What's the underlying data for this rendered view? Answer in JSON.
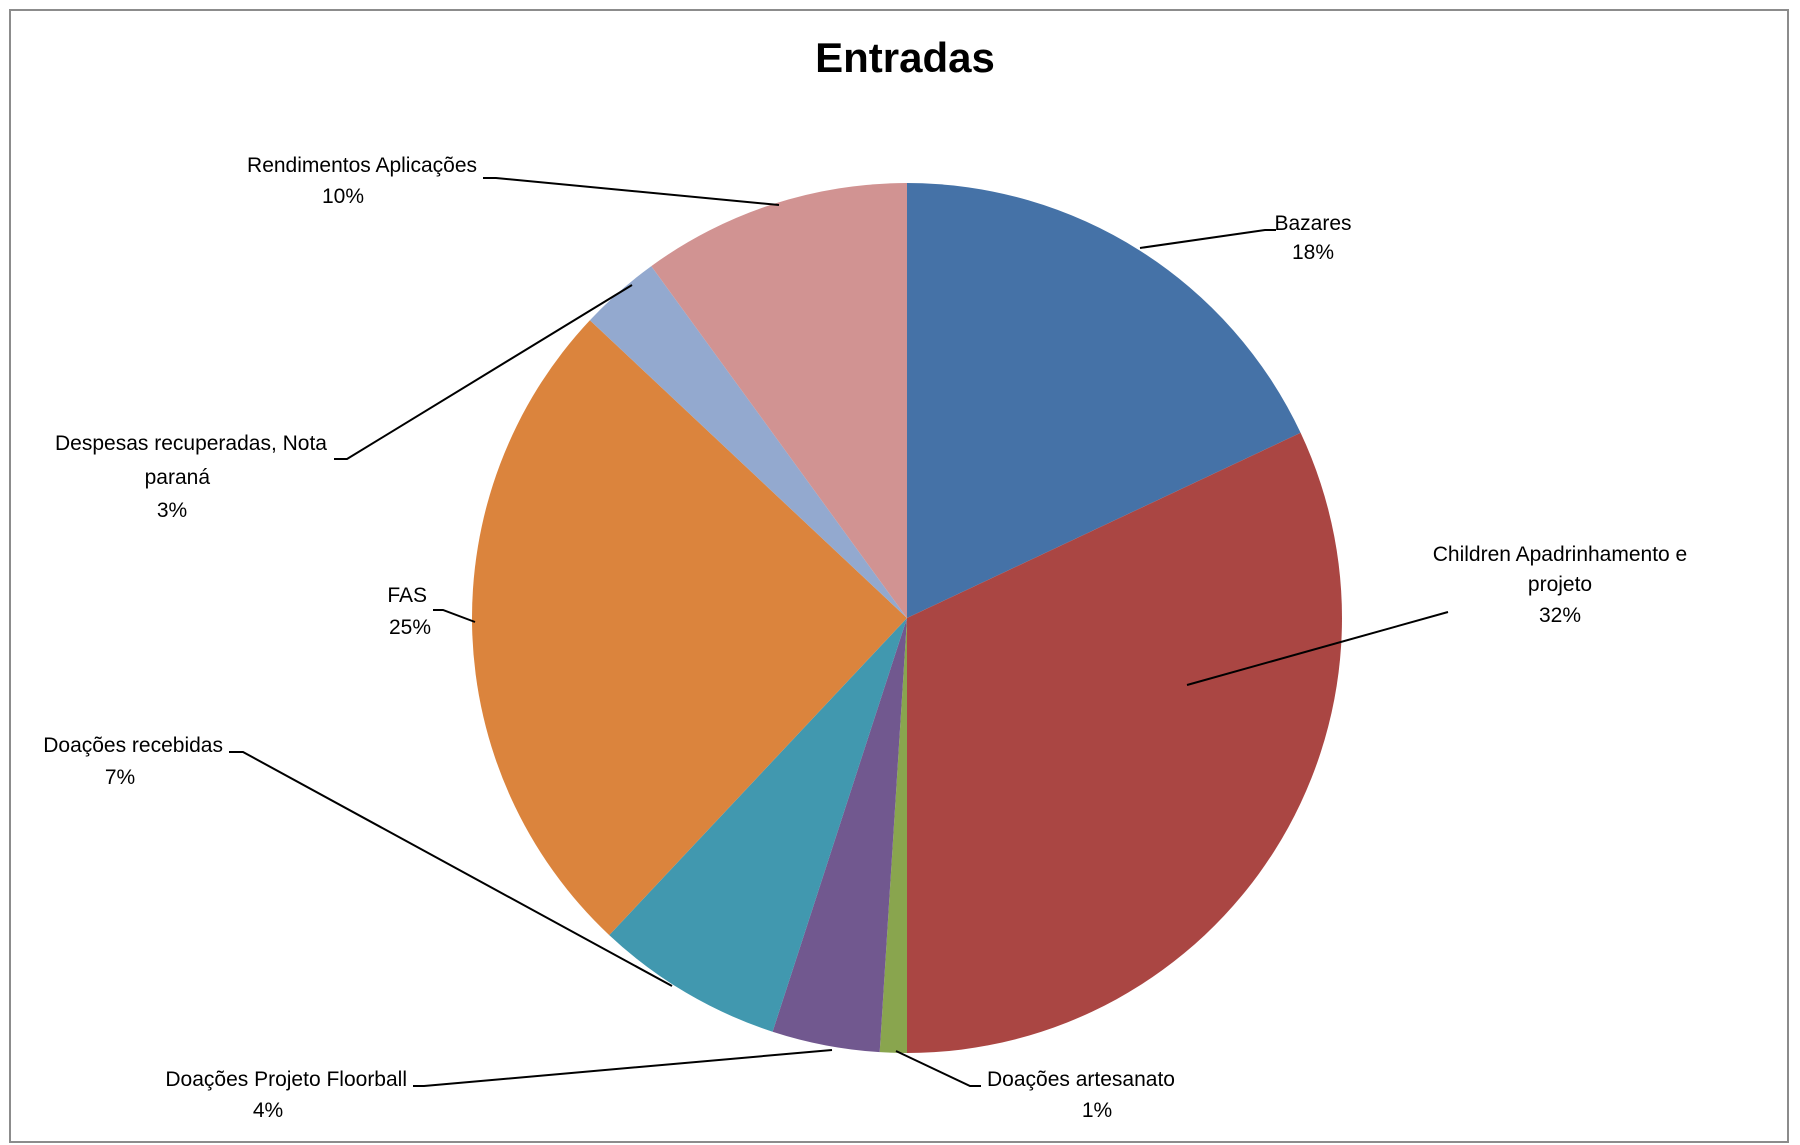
{
  "chart_data": {
    "type": "pie",
    "title": "Entradas",
    "start_angle_deg": 0,
    "direction": "clockwise",
    "legend": "none",
    "slices": [
      {
        "label": "Bazares",
        "percent_label": "18%",
        "value": 18,
        "color": "#4572A7"
      },
      {
        "label": "Children Apadrinhamento e projeto",
        "percent_label": "32%",
        "value": 32,
        "color": "#AA4643"
      },
      {
        "label": "Doações artesanato",
        "percent_label": "1%",
        "value": 1,
        "color": "#89A54E"
      },
      {
        "label": "Doações Projeto Floorball",
        "percent_label": "4%",
        "value": 4,
        "color": "#71588F"
      },
      {
        "label": "Doações recebidas",
        "percent_label": "7%",
        "value": 7,
        "color": "#4198AF"
      },
      {
        "label": "FAS",
        "percent_label": "25%",
        "value": 25,
        "color": "#DB843D"
      },
      {
        "label": "Despesas recuperadas, Nota paraná",
        "percent_label": "3%",
        "value": 3,
        "color": "#93A9CF"
      },
      {
        "label": "Rendimentos Aplicações",
        "percent_label": "10%",
        "value": 10,
        "color": "#D19392"
      }
    ]
  }
}
